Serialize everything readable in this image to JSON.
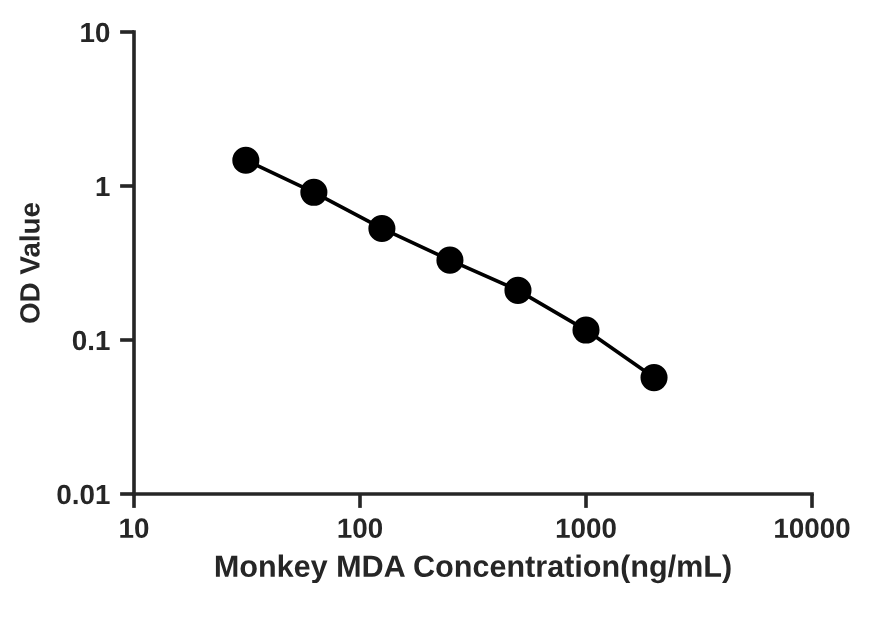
{
  "chart_data": {
    "type": "line",
    "xlabel": "Monkey MDA Concentration(ng/mL)",
    "ylabel": "OD Value",
    "log": "xy",
    "x": [
      31.25,
      62.5,
      125,
      250,
      500,
      1000,
      2000
    ],
    "series": [
      {
        "color": "#000000",
        "values": [
          1.47,
          0.91,
          0.53,
          0.33,
          0.21,
          0.116,
          0.057
        ]
      }
    ],
    "xlim": [
      10,
      10000
    ],
    "xticks": [
      10,
      100,
      1000,
      10000
    ],
    "ylim": [
      0.01,
      10
    ],
    "yticks": [
      0.01,
      0.1,
      1,
      10
    ],
    "marker": "circle",
    "line_style": "solid"
  }
}
